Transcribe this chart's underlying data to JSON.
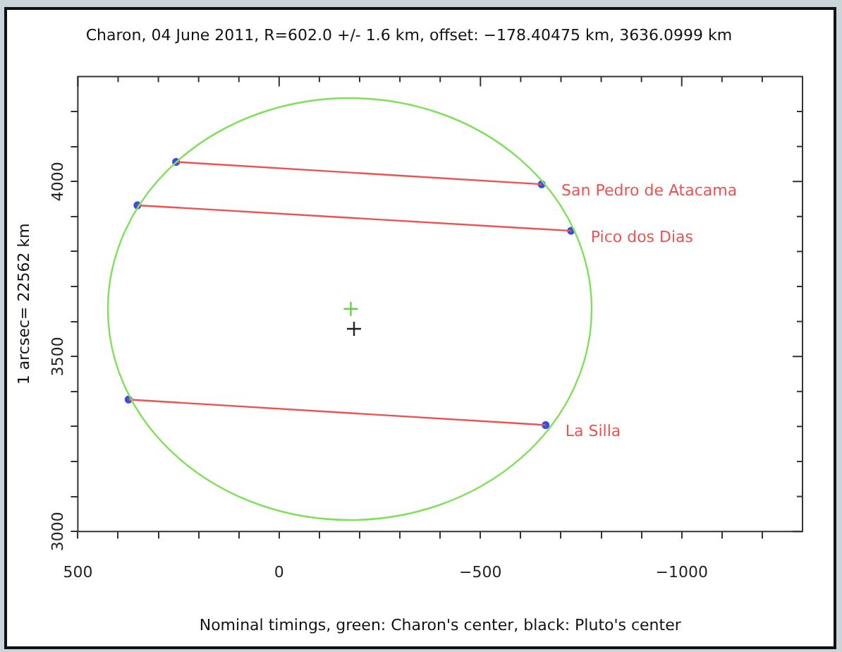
{
  "chart_data": {
    "type": "line",
    "title": "Charon, 04 June 2011, R=602.0 +/- 1.6 km, offset: −178.40475 km, 3636.0999 km",
    "xlabel": "Nominal timings, green: Charon's center, black: Pluto's center",
    "ylabel": "1 arcsec= 22562 km",
    "xlim": [
      500,
      -1300
    ],
    "ylim": [
      3000,
      4300
    ],
    "xticks": [
      500,
      {
        "value": 400,
        "label": null
      },
      {
        "value": 300,
        "label": null
      },
      {
        "value": 200,
        "label": null
      },
      {
        "value": 100,
        "label": null
      },
      0,
      {
        "value": -100,
        "label": null
      },
      {
        "value": -200,
        "label": null
      },
      {
        "value": -300,
        "label": null
      },
      {
        "value": -400,
        "label": null
      },
      -500,
      {
        "value": -600,
        "label": null
      },
      {
        "value": -700,
        "label": null
      },
      {
        "value": -800,
        "label": null
      },
      {
        "value": -900,
        "label": null
      },
      -1000,
      {
        "value": -1100,
        "label": null
      },
      {
        "value": -1200,
        "label": null
      }
    ],
    "yticks": [
      3000,
      {
        "value": 3100,
        "label": null
      },
      {
        "value": 3200,
        "label": null
      },
      {
        "value": 3300,
        "label": null
      },
      {
        "value": 3400,
        "label": null
      },
      3500,
      {
        "value": 3600,
        "label": null
      },
      {
        "value": 3700,
        "label": null
      },
      {
        "value": 3800,
        "label": null
      },
      {
        "value": 3900,
        "label": null
      },
      4000,
      {
        "value": 4100,
        "label": null
      },
      {
        "value": 4200,
        "label": null
      }
    ],
    "grid": false,
    "legend": false,
    "series": [
      {
        "type": "line",
        "name": "San Pedro de Atacama",
        "color": "#f05050",
        "marker": "none",
        "x": [
          256,
          -652
        ],
        "values": [
          4056,
          3992
        ]
      },
      {
        "type": "line",
        "name": "Pico dos Dias",
        "color": "#f05050",
        "marker": "none",
        "x": [
          352,
          -725
        ],
        "values": [
          3932,
          3859
        ]
      },
      {
        "type": "line",
        "name": "La Silla",
        "color": "#f05050",
        "marker": "none",
        "x": [
          374,
          -662
        ],
        "values": [
          3377,
          3304
        ]
      },
      {
        "type": "scatter",
        "color": "#3a4fe0",
        "marker": "circle",
        "x": [
          256,
          -652,
          352,
          -725,
          374,
          -662
        ],
        "values": [
          4056,
          3992,
          3932,
          3859,
          3377,
          3304
        ]
      },
      {
        "type": "scatter",
        "color": "#66d04a",
        "marker": "cross",
        "x": [
          -178
        ],
        "values": [
          3636
        ]
      },
      {
        "type": "scatter",
        "color": "#222222",
        "marker": "cross",
        "x": [
          -186
        ],
        "values": [
          3579
        ]
      }
    ]
  }
}
